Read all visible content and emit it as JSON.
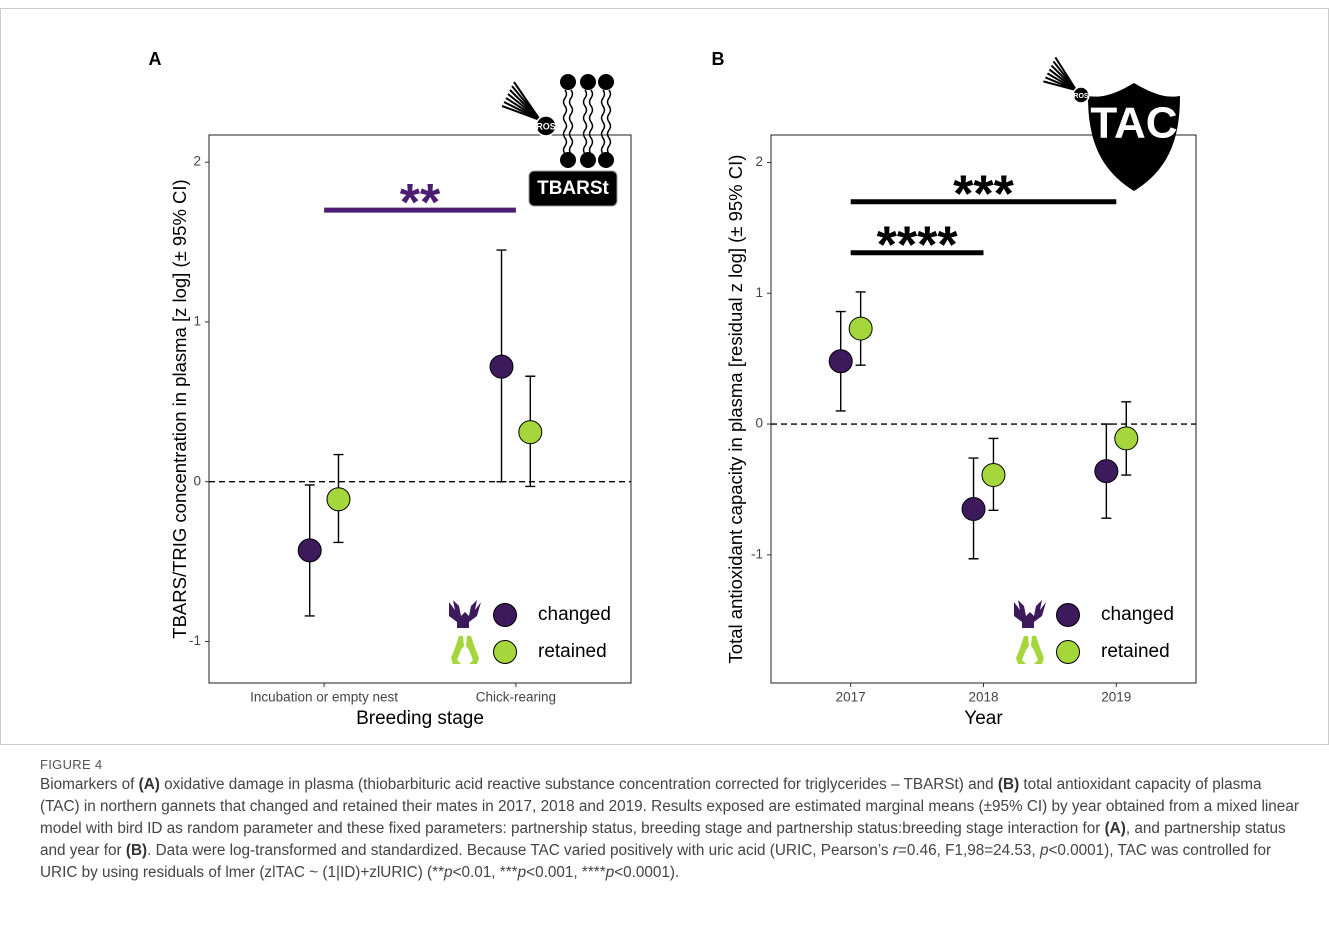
{
  "chart_data": [
    {
      "type": "dotplot",
      "panel_label": "A",
      "x_label": "Breeding stage",
      "y_label": "TBARS/TRIG concentration in plasma [z log] (± 95% CI)",
      "categories": [
        "Incubation or empty nest",
        "Chick-rearing"
      ],
      "ylim": [
        -1.26,
        2.17
      ],
      "yticks": [
        -1,
        0,
        1,
        2
      ],
      "hline": 0,
      "series": [
        {
          "name": "changed",
          "color": "#3d1a5c",
          "values": [
            -0.43,
            0.72
          ],
          "lower": [
            -0.84,
            0.0
          ],
          "upper": [
            -0.02,
            1.45
          ]
        },
        {
          "name": "retained",
          "color": "#a5d63c",
          "values": [
            -0.11,
            0.31
          ],
          "lower": [
            -0.38,
            -0.03
          ],
          "upper": [
            0.17,
            0.66
          ]
        }
      ],
      "annotations": [
        {
          "label": "**",
          "y": 1.7,
          "from": 0,
          "to": 1,
          "color": "#4b1e73"
        }
      ],
      "badge": "TBARSt",
      "badge_marker": "ROS"
    },
    {
      "type": "dotplot",
      "panel_label": "B",
      "x_label": "Year",
      "y_label": "Total antioxidant capacity in plasma [residual z log] (± 95% CI)",
      "categories": [
        "2017",
        "2018",
        "2019"
      ],
      "ylim": [
        -1.98,
        2.21
      ],
      "yticks": [
        -1,
        0,
        1,
        2
      ],
      "hline": 0,
      "series": [
        {
          "name": "changed",
          "color": "#3d1a5c",
          "values": [
            0.48,
            -0.65,
            -0.36
          ],
          "lower": [
            0.1,
            -1.03,
            -0.72
          ],
          "upper": [
            0.86,
            -0.26,
            0.0
          ]
        },
        {
          "name": "retained",
          "color": "#a5d63c",
          "values": [
            0.73,
            -0.39,
            -0.11
          ],
          "lower": [
            0.45,
            -0.66,
            -0.39
          ],
          "upper": [
            1.01,
            -0.11,
            0.17
          ]
        }
      ],
      "annotations": [
        {
          "label": "***",
          "y": 1.7,
          "from": 0,
          "to": 2,
          "color": "#000000"
        },
        {
          "label": "****",
          "y": 1.31,
          "from": 0,
          "to": 1,
          "color": "#000000"
        }
      ],
      "badge": "TAC",
      "badge_marker": "ROS"
    }
  ],
  "figure_label": "FIGURE 4",
  "caption": [
    {
      "text": "Biomarkers of "
    },
    {
      "text": "(A)",
      "bold": true
    },
    {
      "text": " oxidative damage in plasma (thiobarbituric acid reactive substance concentration corrected for triglycerides – TBARSt) and "
    },
    {
      "text": "(B)",
      "bold": true
    },
    {
      "text": " total antioxidant capacity of plasma (TAC) in northern gannets that changed and retained their mates in 2017, 2018 and 2019. Results exposed are estimated marginal means (±95% CI) by year obtained from a mixed linear model with bird ID as random parameter and these fixed parameters: partnership status, breeding stage and partnership status:breeding stage interaction for "
    },
    {
      "text": "(A)",
      "bold": true
    },
    {
      "text": ", and partnership status and year for "
    },
    {
      "text": "(B)",
      "bold": true
    },
    {
      "text": ". Data were log-transformed and standardized. Because TAC varied positively with uric acid (URIC, Pearson’s "
    },
    {
      "text": "r",
      "italic": true
    },
    {
      "text": "=0.46, F1,98=24.53, "
    },
    {
      "text": "p",
      "italic": true
    },
    {
      "text": "<0.0001), TAC was controlled for URIC by using residuals of lmer (zlTAC ~ (1|ID)+zlURIC) (**"
    },
    {
      "text": "p",
      "italic": true
    },
    {
      "text": "<0.01, ***"
    },
    {
      "text": "p",
      "italic": true
    },
    {
      "text": "<0.001, ****"
    },
    {
      "text": "p",
      "italic": true
    },
    {
      "text": "<0.0001)."
    }
  ]
}
